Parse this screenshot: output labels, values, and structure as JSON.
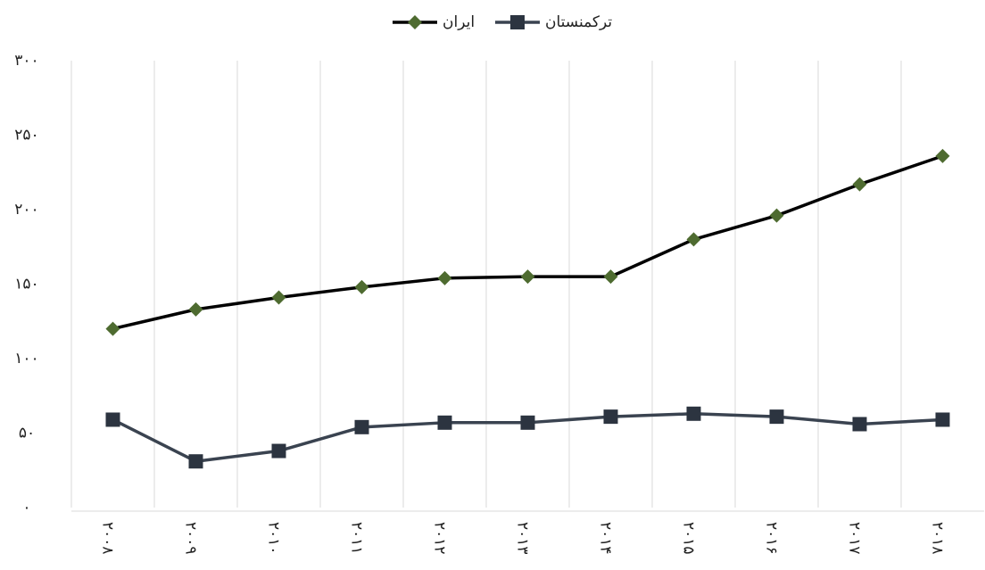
{
  "chart_data": {
    "type": "line",
    "categories": [
      "۲۰۰۸",
      "۲۰۰۹",
      "۲۰۱۰",
      "۲۰۱۱",
      "۲۰۱۲",
      "۲۰۱۳",
      "۲۰۱۴",
      "۲۰۱۵",
      "۲۰۱۶",
      "۲۰۱۷",
      "۲۰۱۸"
    ],
    "series": [
      {
        "name": "ایران",
        "color": "#4e6b30",
        "line_color": "#000000",
        "marker": "diamond",
        "values": [
          120,
          133,
          141,
          148,
          154,
          155,
          155,
          180,
          196,
          217,
          236
        ]
      },
      {
        "name": "ترکمنستان",
        "color": "#2c3440",
        "line_color": "#3a4350",
        "marker": "square",
        "values": [
          59,
          31,
          38,
          54,
          57,
          57,
          61,
          63,
          61,
          56,
          59
        ]
      }
    ],
    "ylim": [
      0,
      300
    ],
    "yticks": [
      {
        "value": 0,
        "label": "۰"
      },
      {
        "value": 50,
        "label": "۵۰"
      },
      {
        "value": 100,
        "label": "۱۰۰"
      },
      {
        "value": 150,
        "label": "۱۵۰"
      },
      {
        "value": 200,
        "label": "۲۰۰"
      },
      {
        "value": 250,
        "label": "۲۵۰"
      },
      {
        "value": 300,
        "label": "۳۰۰"
      }
    ],
    "grid": true,
    "legend": "top"
  }
}
